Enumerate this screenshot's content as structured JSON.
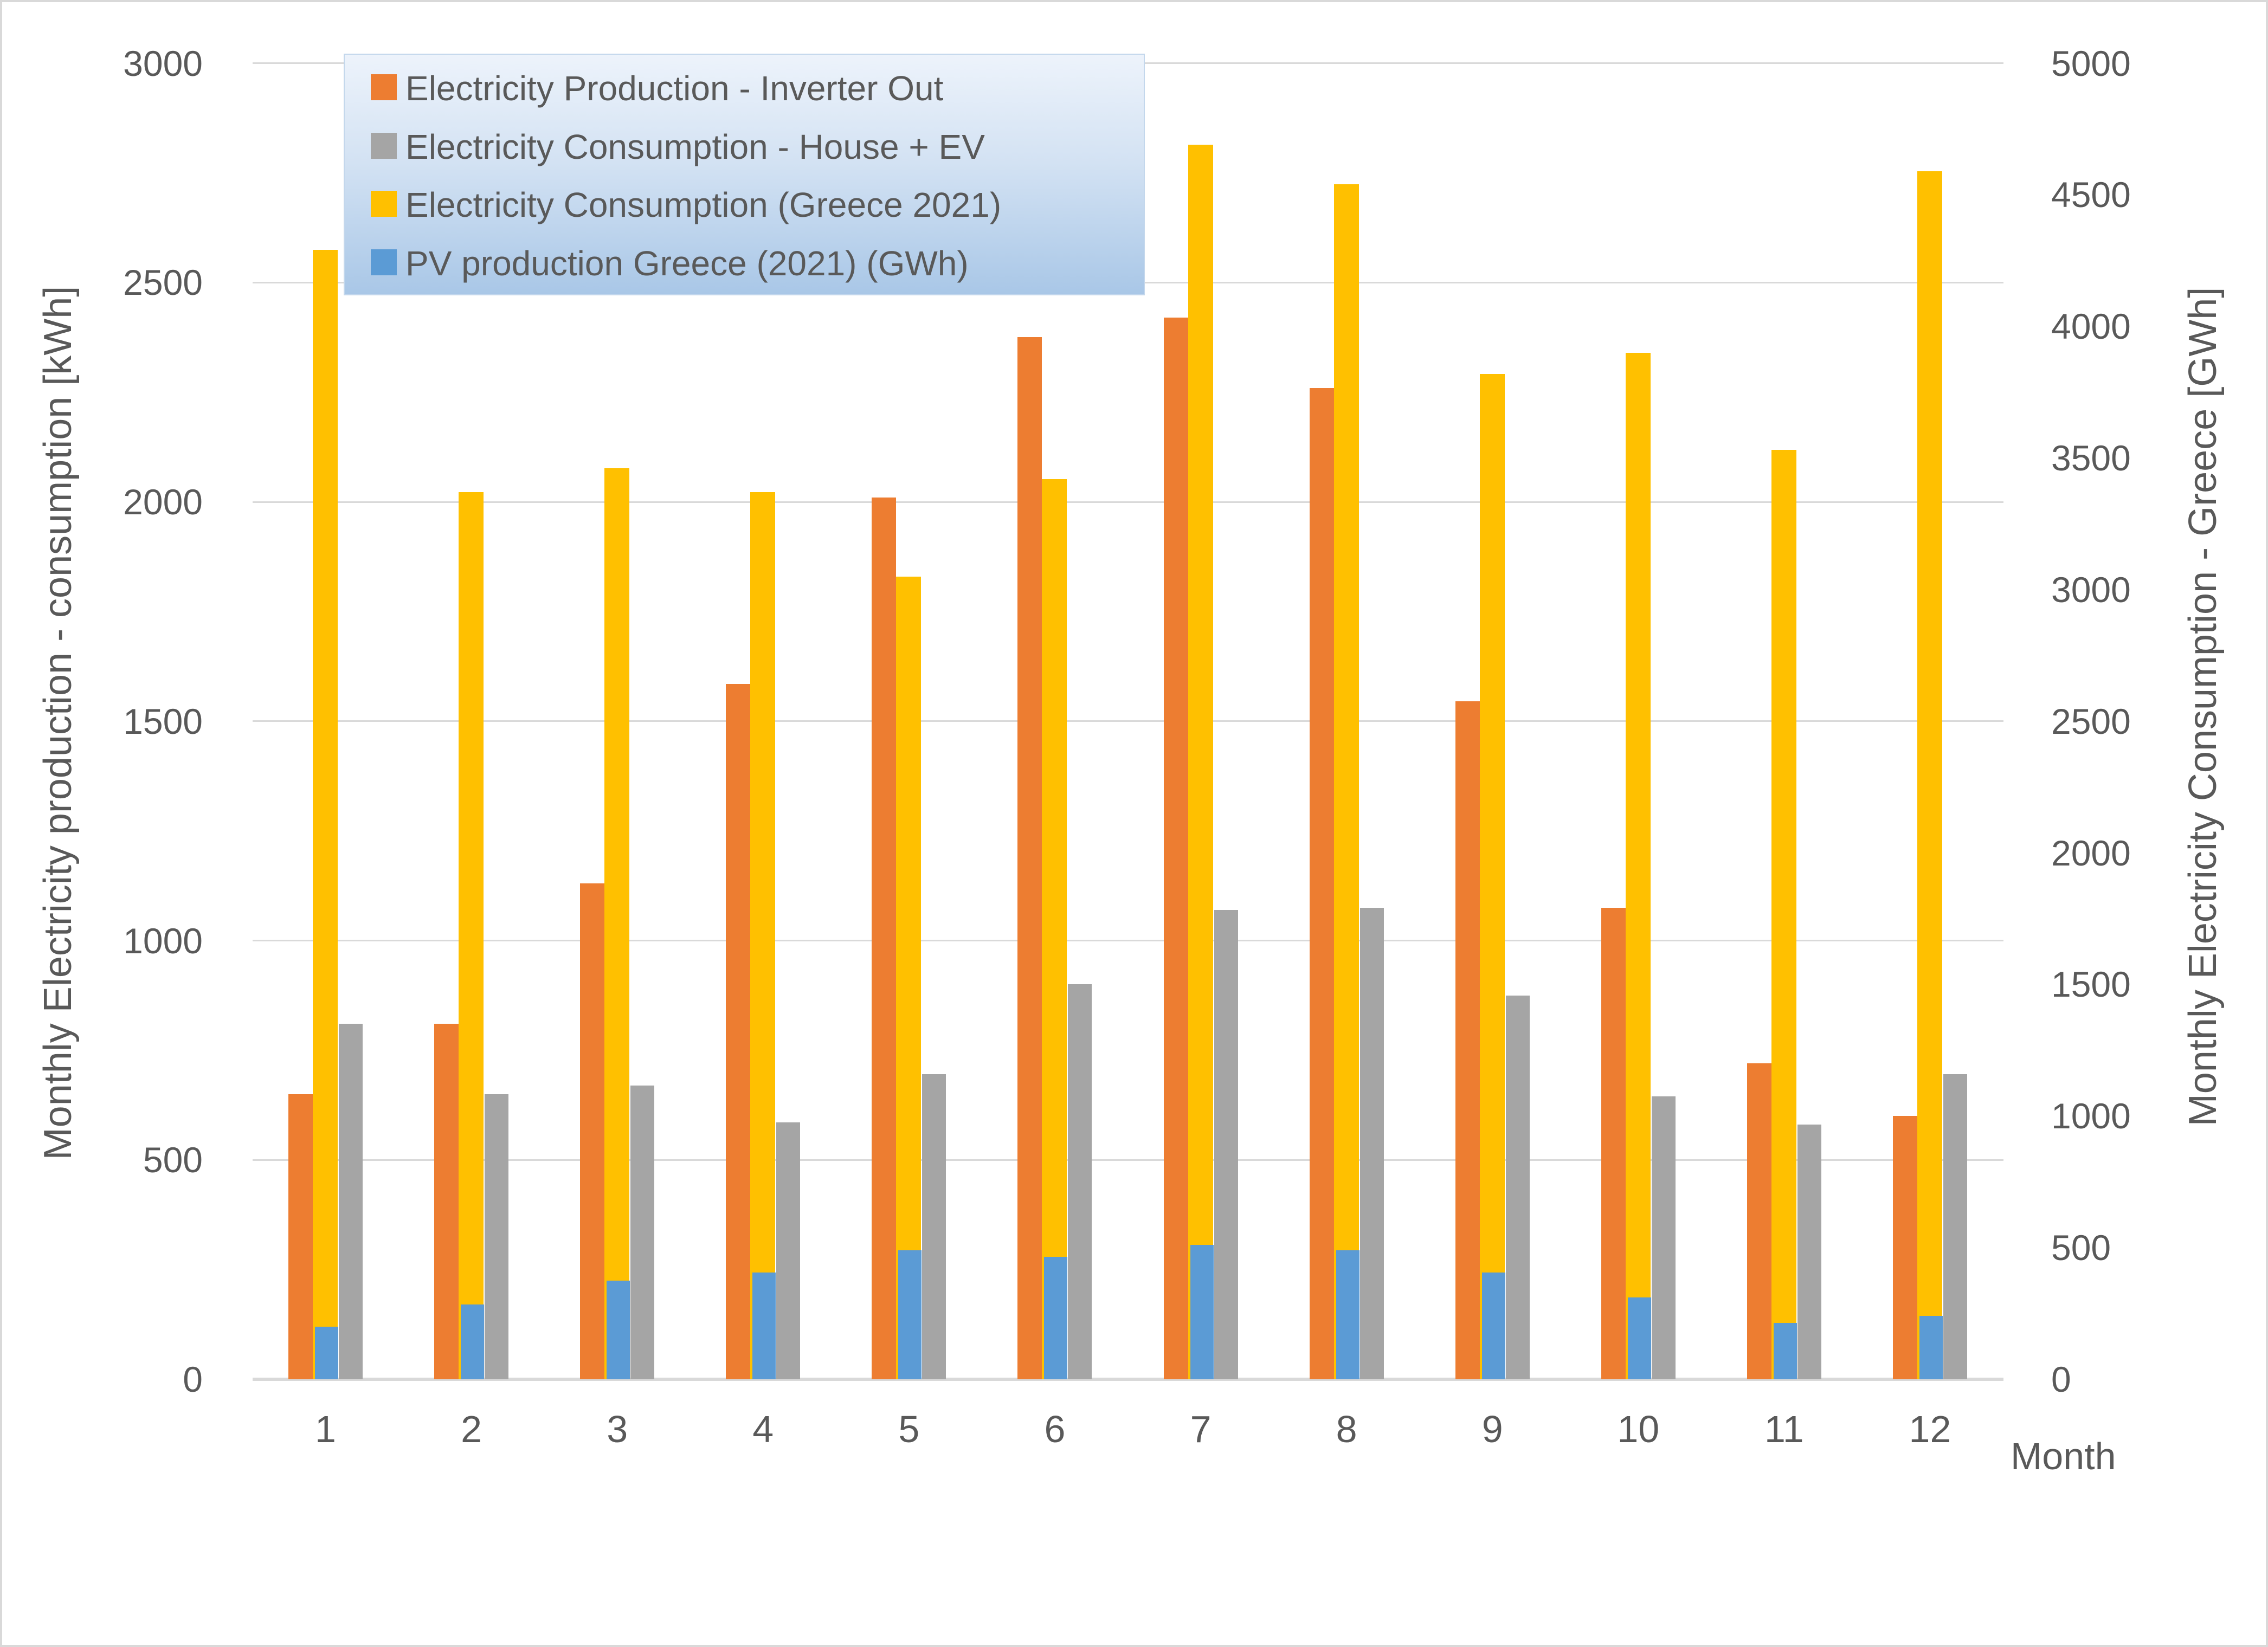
{
  "chart_data": {
    "type": "bar",
    "title": "",
    "categories": [
      "1",
      "2",
      "3",
      "4",
      "5",
      "6",
      "7",
      "8",
      "9",
      "10",
      "11",
      "12"
    ],
    "xlabel": "Month",
    "grid": true,
    "legend_position": "top-left",
    "axes": {
      "left": {
        "label": "Monthly Electricity production - consumption [kWh]",
        "min": 0,
        "max": 3000,
        "step": 500,
        "tick_labels": [
          "0",
          "500",
          "1000",
          "1500",
          "2000",
          "2500",
          "3000"
        ]
      },
      "right": {
        "label": "Monthly Electricity Consumption - Greece [GWh]",
        "min": 0,
        "max": 5000,
        "step": 500,
        "tick_labels": [
          "0",
          "500",
          "1000",
          "1500",
          "2000",
          "2500",
          "3000",
          "3500",
          "4000",
          "4500",
          "5000"
        ]
      }
    },
    "series": [
      {
        "name": "Electricity Production - Inverter Out",
        "color": "#ED7D31",
        "axis": "left",
        "values": [
          650,
          810,
          1130,
          1585,
          2010,
          2375,
          2420,
          2260,
          1545,
          1075,
          720,
          600
        ]
      },
      {
        "name": "Electricity Consumption - House + EV",
        "color": "#A5A5A5",
        "axis": "left",
        "values": [
          810,
          650,
          670,
          585,
          695,
          900,
          1070,
          1075,
          875,
          645,
          580,
          695
        ]
      },
      {
        "name": "Electricity Consumption (Greece 2021)",
        "color": "#FFC000",
        "axis": "right",
        "values": [
          4290,
          3370,
          3460,
          3370,
          3050,
          3420,
          4690,
          4540,
          3820,
          3900,
          3530,
          4590
        ]
      },
      {
        "name": "PV production Greece (2021) (GWh)",
        "color": "#5B9BD5",
        "axis": "right",
        "values": [
          200,
          285,
          375,
          405,
          490,
          465,
          510,
          490,
          405,
          310,
          215,
          240
        ]
      }
    ],
    "colors": {
      "grid": "#D9D9D9",
      "text": "#595959",
      "legend_gradient_top": "#EDF3FB",
      "legend_gradient_bottom": "#A9C7E7"
    }
  }
}
